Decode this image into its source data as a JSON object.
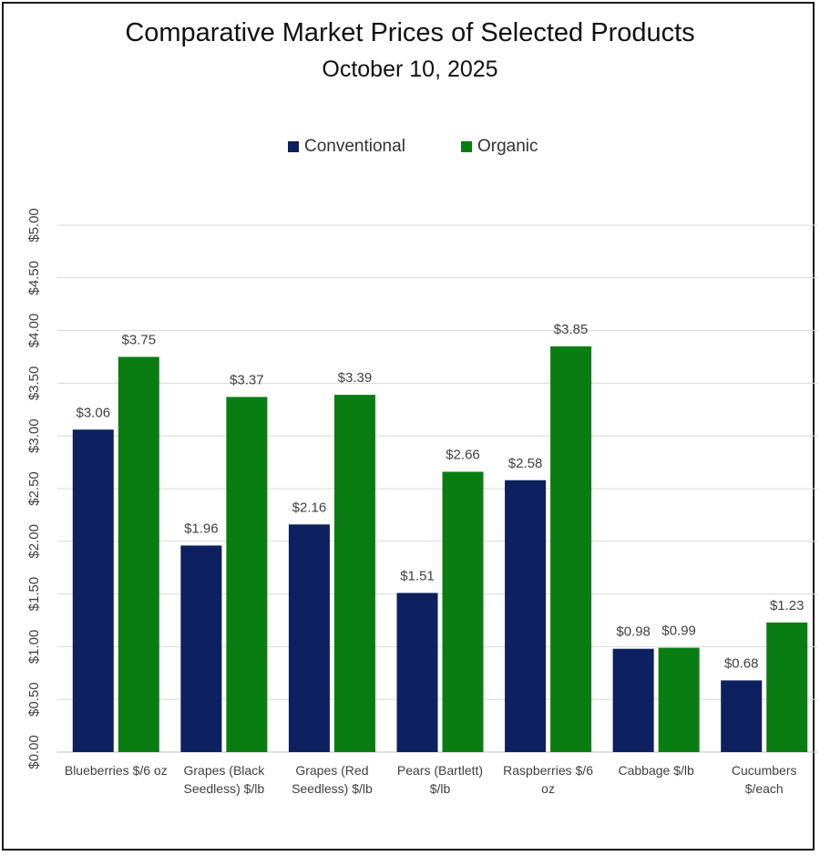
{
  "title": "Comparative Market Prices of Selected Products",
  "subtitle": "October 10, 2025",
  "legend": {
    "conventional": "Conventional",
    "organic": "Organic"
  },
  "colors": {
    "conventional": "#0d2060",
    "organic": "#0a7d12",
    "grid": "#d9d9d9",
    "axis": "#bfbfbf",
    "text": "#404040"
  },
  "chart_data": {
    "type": "bar",
    "title": "Comparative Market Prices of Selected Products",
    "subtitle": "October 10, 2025",
    "xlabel": "",
    "ylabel": "",
    "ylim": [
      0,
      5
    ],
    "ytick_step": 0.5,
    "ytick_labels": [
      "$0.00",
      "$0.50",
      "$1.00",
      "$1.50",
      "$2.00",
      "$2.50",
      "$3.00",
      "$3.50",
      "$4.00",
      "$4.50",
      "$5.00"
    ],
    "grid": true,
    "legend_position": "top",
    "categories": [
      [
        "Blueberries $/6 oz"
      ],
      [
        "Grapes (Black",
        "Seedless) $/lb"
      ],
      [
        "Grapes (Red",
        "Seedless) $/lb"
      ],
      [
        "Pears (Bartlett)",
        "$/lb"
      ],
      [
        "Raspberries $/6",
        "oz"
      ],
      [
        "Cabbage $/lb"
      ],
      [
        "Cucumbers",
        "$/each"
      ]
    ],
    "series": [
      {
        "name": "Conventional",
        "values": [
          3.06,
          1.96,
          2.16,
          1.51,
          2.58,
          0.98,
          0.68
        ],
        "labels": [
          "$3.06",
          "$1.96",
          "$2.16",
          "$1.51",
          "$2.58",
          "$0.98",
          "$0.68"
        ]
      },
      {
        "name": "Organic",
        "values": [
          3.75,
          3.37,
          3.39,
          2.66,
          3.85,
          0.99,
          1.23
        ],
        "labels": [
          "$3.75",
          "$3.37",
          "$3.39",
          "$2.66",
          "$3.85",
          "$0.99",
          "$1.23"
        ]
      }
    ]
  }
}
